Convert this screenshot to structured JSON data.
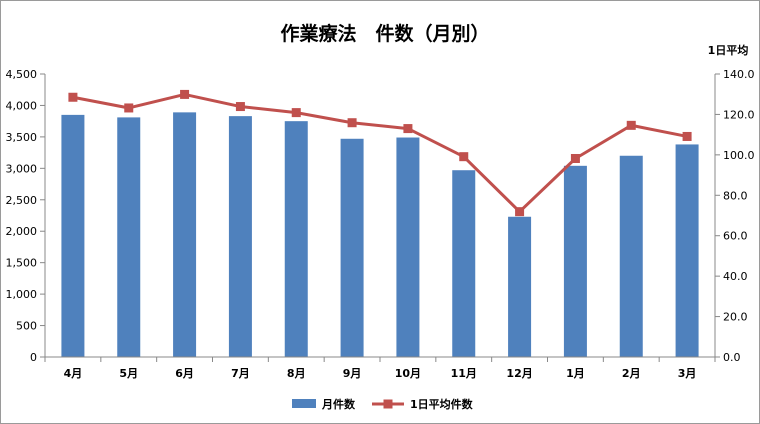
{
  "chart_data": {
    "type": "bar",
    "title": "作業療法　件数（月別）",
    "y2label": "1日平均",
    "categories": [
      "4月",
      "5月",
      "6月",
      "7月",
      "8月",
      "9月",
      "10月",
      "11月",
      "12月",
      "1月",
      "2月",
      "3月"
    ],
    "series": [
      {
        "name": "月件数",
        "type": "bar",
        "axis": "left",
        "color": "#4f81bd",
        "values": [
          3850,
          3810,
          3890,
          3830,
          3750,
          3470,
          3490,
          2970,
          2230,
          3040,
          3200,
          3380
        ]
      },
      {
        "name": "1日平均件数",
        "type": "line",
        "axis": "right",
        "color": "#c0504d",
        "values": [
          128.5,
          123.2,
          129.9,
          123.9,
          120.9,
          115.9,
          113.0,
          99.1,
          71.9,
          98.2,
          114.6,
          109.1
        ]
      }
    ],
    "ylim": [
      0,
      4500
    ],
    "yticks": [
      "0",
      "500",
      "1,000",
      "1,500",
      "2,000",
      "2,500",
      "3,000",
      "3,500",
      "4,000",
      "4,500"
    ],
    "y2lim": [
      0,
      140
    ],
    "y2ticks": [
      "0.0",
      "20.0",
      "40.0",
      "60.0",
      "80.0",
      "100.0",
      "120.0",
      "140.0"
    ],
    "legend": "bottom",
    "grid": false
  }
}
